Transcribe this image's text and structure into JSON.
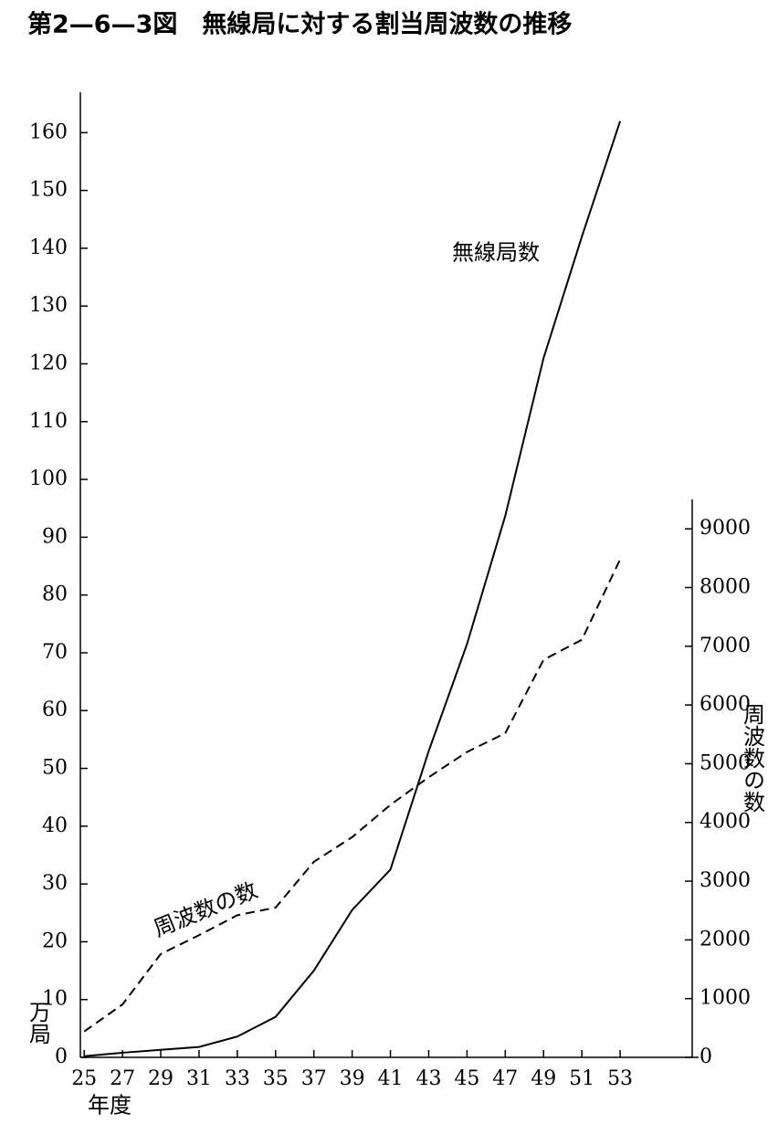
{
  "chart_data": {
    "type": "line",
    "title": "第2—6—3図　無線局に対する割当周波数の推移",
    "x_label": "年度",
    "y_label": "万局",
    "y2_label": "周波数の数",
    "x": [
      25,
      27,
      29,
      31,
      33,
      35,
      37,
      39,
      41,
      43,
      45,
      47,
      49,
      51,
      53
    ],
    "xlim": [
      24.8,
      57.1
    ],
    "xticks": [
      25,
      27,
      29,
      31,
      33,
      35,
      37,
      39,
      41,
      43,
      45,
      47,
      49,
      51,
      53
    ],
    "ylim": [
      0,
      167
    ],
    "yticks": [
      0,
      10,
      20,
      30,
      40,
      50,
      60,
      70,
      80,
      90,
      100,
      110,
      120,
      130,
      140,
      150,
      160
    ],
    "y2lim": [
      0,
      9500
    ],
    "y2ticks": [
      0,
      1000,
      2000,
      3000,
      4000,
      5000,
      6000,
      7000,
      8000,
      9000
    ],
    "series": [
      {
        "name": "無線局数",
        "color": "#000000",
        "dash": "solid",
        "values": [
          0.2,
          0.8,
          1.3,
          1.8,
          3.6,
          7,
          15,
          25.5,
          32.5,
          53,
          71.5,
          93.7,
          121,
          142,
          162
        ]
      },
      {
        "name": "周波数の数",
        "color": "#000000",
        "dash": "dashed",
        "axis": "y2",
        "values": [
          440,
          900,
          1760,
          2080,
          2420,
          2550,
          3330,
          3750,
          4300,
          4770,
          5200,
          5520,
          6770,
          7110,
          8480
        ]
      }
    ]
  }
}
